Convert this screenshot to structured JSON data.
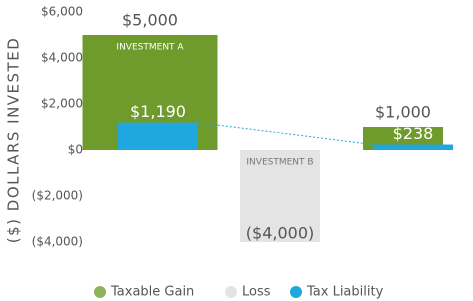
{
  "chart_data": {
    "type": "bar",
    "y_axis_label": "($) DOLLARS INVESTED",
    "categories": [
      "INVESTMENT A",
      "INVESTMENT B",
      null
    ],
    "series": [
      {
        "name": "Taxable Gain",
        "color": "#6f9b2c",
        "legend_color": "#8fb35c",
        "values": [
          5000,
          null,
          1000
        ],
        "value_labels": [
          "$5,000",
          null,
          "$1,000"
        ]
      },
      {
        "name": "Loss",
        "color": "#e4e4e4",
        "legend_color": "#e4e4e4",
        "values": [
          null,
          -4000,
          null
        ],
        "value_labels": [
          null,
          "($4,000)",
          null
        ]
      },
      {
        "name": "Tax Liability",
        "color": "#1fa8e0",
        "legend_color": "#1fa8e0",
        "values": [
          1190,
          null,
          238
        ],
        "value_labels": [
          "$1,190",
          null,
          "$238"
        ]
      }
    ],
    "ylim": [
      -4000,
      6000
    ],
    "yticks": [
      {
        "value": 6000,
        "label": "$6,000"
      },
      {
        "value": 4000,
        "label": "$4,000"
      },
      {
        "value": 2000,
        "label": "$2,000"
      },
      {
        "value": 0,
        "label": "$0"
      },
      {
        "value": -2000,
        "label": "($2,000)"
      },
      {
        "value": -4000,
        "label": "($4,000)"
      }
    ]
  }
}
